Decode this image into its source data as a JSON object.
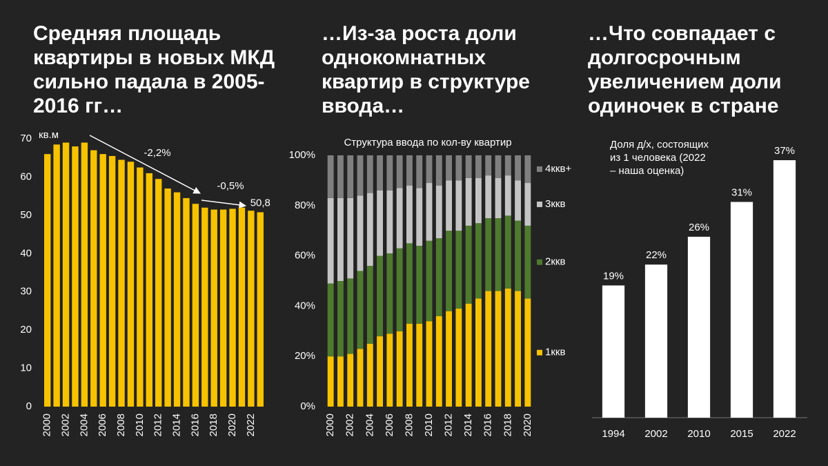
{
  "chart_data": [
    {
      "type": "bar",
      "heading": [
        "Средняя площадь",
        "квартиры в новых МКД",
        "сильно падала в 2005-",
        "2016 гг…"
      ],
      "y_unit": "кв.м",
      "annotations": [
        "-2,2%",
        "-0,5%"
      ],
      "categories": [
        "2000",
        null,
        "2002",
        null,
        "2004",
        null,
        "2006",
        null,
        "2008",
        null,
        "2010",
        null,
        "2012",
        null,
        "2014",
        null,
        "2016",
        null,
        "2018",
        null,
        "2020",
        null,
        "2022",
        null
      ],
      "values": [
        66,
        68.5,
        69,
        68,
        69,
        67,
        66,
        65.5,
        64.5,
        64,
        62.5,
        61,
        59.5,
        57,
        56,
        54.5,
        53,
        52,
        51.5,
        51.5,
        51.7,
        52,
        51.2,
        50.8
      ],
      "value_labels": [
        null,
        null,
        null,
        null,
        null,
        null,
        null,
        null,
        null,
        null,
        null,
        null,
        null,
        null,
        null,
        null,
        null,
        null,
        null,
        null,
        null,
        null,
        null,
        "50,8"
      ],
      "color": "#f7c200",
      "ylim": [
        0,
        70
      ],
      "yticks": [
        0,
        10,
        20,
        30,
        40,
        50,
        60,
        70
      ]
    },
    {
      "type": "bar",
      "stacked": true,
      "heading": [
        "…Из-за роста доли",
        "однокомнатных",
        "квартир в структуре",
        "ввода…"
      ],
      "title": "Структура ввода по кол-ву квартир",
      "categories": [
        "2000",
        null,
        "2002",
        null,
        "2004",
        null,
        "2006",
        null,
        "2008",
        null,
        "2010",
        null,
        "2012",
        null,
        "2014",
        null,
        "2016",
        null,
        "2018",
        null,
        "2020"
      ],
      "series": [
        {
          "name": "1ккв",
          "color": "#f7c200",
          "values": [
            20,
            20,
            21,
            23,
            25,
            28,
            29,
            30,
            33,
            33,
            34,
            36,
            38,
            39,
            41,
            43,
            46,
            46,
            47,
            46,
            43
          ]
        },
        {
          "name": "2ккв",
          "color": "#4e7a2e",
          "values": [
            29,
            30,
            30,
            31,
            31,
            32,
            32,
            33,
            32,
            31,
            32,
            31,
            32,
            31,
            31,
            30,
            29,
            29,
            29,
            28,
            29
          ]
        },
        {
          "name": "3ккв",
          "color": "#c4c4c4",
          "values": [
            34,
            33,
            32,
            30,
            29,
            26,
            25,
            24,
            23,
            23,
            23,
            21,
            20,
            20,
            19,
            18,
            17,
            16,
            16,
            16,
            17
          ]
        },
        {
          "name": "4ккв+",
          "color": "#7f7f7f",
          "values": [
            17,
            17,
            17,
            16,
            15,
            14,
            14,
            13,
            12,
            13,
            11,
            12,
            10,
            10,
            9,
            9,
            8,
            9,
            8,
            10,
            11
          ]
        }
      ],
      "ylim": [
        0,
        100
      ],
      "yticks": [
        {
          "value": 0,
          "label": "0%"
        },
        {
          "value": 20,
          "label": "20%"
        },
        {
          "value": 40,
          "label": "40%"
        },
        {
          "value": 60,
          "label": "60%"
        },
        {
          "value": 80,
          "label": "80%"
        },
        {
          "value": 100,
          "label": "100%"
        }
      ],
      "legend": "right"
    },
    {
      "type": "bar",
      "heading": [
        "…Что совпадает с",
        "долгосрочным",
        "увеличением доли",
        "одиночек в стране"
      ],
      "subtitle": [
        "Доля д/х, состоящих",
        "из 1 человека (2022",
        "– наша оценка)"
      ],
      "categories": [
        "1994",
        "2002",
        "2010",
        "2015",
        "2022"
      ],
      "values": [
        19,
        22,
        26,
        31,
        37
      ],
      "value_labels": [
        "19%",
        "22%",
        "26%",
        "31%",
        "37%"
      ],
      "color": "#ffffff"
    }
  ]
}
